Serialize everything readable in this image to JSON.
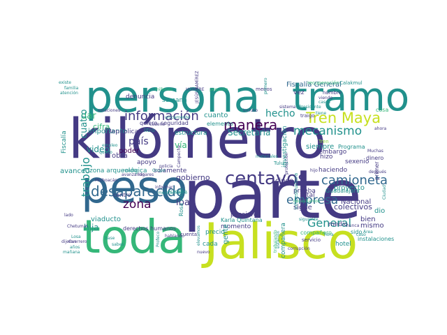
{
  "palette": {
    "yellow": "#c7e020",
    "lime": "#8fd744",
    "green": "#35b779",
    "teal": "#21918c",
    "blue": "#31688e",
    "indigo": "#443a83",
    "purple": "#440154"
  },
  "words": [
    {
      "text": "kilómetro",
      "color": "indigo"
    },
    {
      "text": "parte",
      "color": "indigo"
    },
    {
      "text": "persona",
      "color": "teal"
    },
    {
      "text": "peso",
      "color": "blue"
    },
    {
      "text": "toda",
      "color": "green"
    },
    {
      "text": "Jalisco",
      "color": "yellow"
    },
    {
      "text": "tramo",
      "color": "teal"
    },
    {
      "text": "centavos",
      "color": "indigo"
    },
    {
      "text": "Tren Maya",
      "color": "yellow"
    },
    {
      "text": "camioneta",
      "color": "blue"
    },
    {
      "text": "desaparecido",
      "color": "blue"
    },
    {
      "text": "información",
      "color": "indigo"
    },
    {
      "text": "manera",
      "color": "purple"
    },
    {
      "text": "mecanismo",
      "color": "teal"
    },
    {
      "text": "trabajo",
      "color": "teal"
    },
    {
      "text": "empresa",
      "color": "blue"
    },
    {
      "text": "zona",
      "color": "purple"
    },
    {
      "text": "General",
      "color": "teal"
    },
    {
      "text": "hecho",
      "color": "teal"
    },
    {
      "text": "cuatro",
      "color": "teal"
    },
    {
      "text": "país",
      "color": "indigo"
    },
    {
      "text": "colectivos",
      "color": "indigo"
    },
    {
      "text": "Secretaría",
      "color": "teal"
    },
    {
      "text": "gobierno",
      "color": "indigo"
    },
    {
      "text": "hija",
      "color": "teal"
    },
    {
      "text": "vía",
      "color": "green"
    },
    {
      "text": "video",
      "color": "teal"
    },
    {
      "text": "iba",
      "color": "indigo"
    },
    {
      "text": "gente",
      "color": "teal"
    },
    {
      "text": "cuanto",
      "color": "teal"
    },
    {
      "text": "dar",
      "color": "green"
    },
    {
      "text": "cifra",
      "color": "green"
    },
    {
      "text": "obra",
      "color": "indigo"
    },
    {
      "text": "poder",
      "color": "purple"
    },
    {
      "text": "importante",
      "color": "teal"
    },
    {
      "text": "República",
      "color": "indigo"
    },
    {
      "text": "Fiscalía General",
      "color": "blue"
    },
    {
      "text": "zona arqueológica",
      "color": "teal"
    },
    {
      "text": "solamente",
      "color": "indigo"
    },
    {
      "text": "viaducto",
      "color": "teal"
    },
    {
      "text": "avance",
      "color": "teal"
    },
    {
      "text": "derechos humanos",
      "color": "indigo"
    },
    {
      "text": "momento",
      "color": "indigo"
    },
    {
      "text": "precio",
      "color": "teal"
    },
    {
      "text": "pasajero",
      "color": "indigo"
    },
    {
      "text": "sigue",
      "color": "indigo"
    },
    {
      "text": "Nacional",
      "color": "indigo"
    },
    {
      "text": "proyecto",
      "color": "teal"
    },
    {
      "text": "bien",
      "color": "indigo"
    },
    {
      "text": "mismo",
      "color": "indigo"
    },
    {
      "text": "dio",
      "color": "teal"
    },
    {
      "text": "haciendo",
      "color": "indigo"
    },
    {
      "text": "embargo",
      "color": "indigo"
    },
    {
      "text": "siempre",
      "color": "teal"
    },
    {
      "text": "hizo",
      "color": "indigo"
    },
    {
      "text": "sexenio",
      "color": "indigo"
    },
    {
      "text": "dinero",
      "color": "indigo"
    },
    {
      "text": "cosa",
      "color": "green"
    },
    {
      "text": "compañera",
      "color": "teal"
    },
    {
      "text": "investigación",
      "color": "teal"
    },
    {
      "text": "estructura",
      "color": "teal"
    },
    {
      "text": "seguridad",
      "color": "indigo"
    },
    {
      "text": "quiero",
      "color": "indigo"
    },
    {
      "text": "litro",
      "color": "teal"
    },
    {
      "text": "elemento",
      "color": "teal"
    },
    {
      "text": "semana",
      "color": "teal"
    },
    {
      "text": "denuncia",
      "color": "indigo"
    },
    {
      "text": "apoyo",
      "color": "indigo"
    },
    {
      "text": "cada",
      "color": "teal"
    },
    {
      "text": "cinco",
      "color": "indigo"
    },
    {
      "text": "sido",
      "color": "teal"
    },
    {
      "text": "medio",
      "color": "indigo"
    },
    {
      "text": "hotel",
      "color": "teal"
    },
    {
      "text": "vez",
      "color": "indigo"
    },
    {
      "text": "total",
      "color": "indigo"
    },
    {
      "text": "centro",
      "color": "indigo"
    },
    {
      "text": "prueba",
      "color": "indigo"
    },
    {
      "text": "Guadalajara",
      "color": "teal"
    },
    {
      "text": "Rosa Icela",
      "color": "teal"
    },
    {
      "text": "Karla Quintana",
      "color": "teal"
    },
    {
      "text": "Fiscalía",
      "color": "teal"
    },
    {
      "text": "compañero",
      "color": "green"
    },
    {
      "text": "infraestructura",
      "color": "teal"
    },
    {
      "text": "primer",
      "color": "indigo"
    },
    {
      "text": "Programa",
      "color": "teal"
    },
    {
      "text": "Muchas",
      "color": "indigo"
    },
    {
      "text": "Tulum",
      "color": "teal"
    },
    {
      "text": "traigo",
      "color": "indigo"
    },
    {
      "text": "viendo",
      "color": "indigo"
    },
    {
      "text": "casos",
      "color": "teal"
    },
    {
      "text": "nombre",
      "color": "indigo"
    },
    {
      "text": "menos",
      "color": "indigo"
    },
    {
      "text": "primero",
      "color": "teal"
    },
    {
      "text": "recuperación",
      "color": "green"
    },
    {
      "text": "Calakmul",
      "color": "teal"
    },
    {
      "text": "millones",
      "color": "green"
    },
    {
      "text": "HOMBRE",
      "color": "indigo"
    },
    {
      "text": "JESÚS RAMÍREZ",
      "color": "indigo"
    },
    {
      "text": "estaciones",
      "color": "indigo"
    },
    {
      "text": "avanzando",
      "color": "indigo"
    },
    {
      "text": "resulta",
      "color": "teal"
    },
    {
      "text": "policía",
      "color": "indigo"
    },
    {
      "text": "Grupo",
      "color": "teal"
    },
    {
      "text": "lugares",
      "color": "indigo"
    },
    {
      "text": "Campeche",
      "color": "indigo"
    },
    {
      "text": "Michoacán",
      "color": "indigo"
    },
    {
      "text": "Chetumal",
      "color": "indigo"
    },
    {
      "text": "Guerrero",
      "color": "indigo"
    },
    {
      "text": "hablando",
      "color": "indigo"
    },
    {
      "text": "cuenta",
      "color": "indigo"
    },
    {
      "text": "servicio",
      "color": "indigo"
    },
    {
      "text": "incluso",
      "color": "indigo"
    },
    {
      "text": "sistema",
      "color": "indigo"
    },
    {
      "text": "protección",
      "color": "indigo"
    },
    {
      "text": "Tren",
      "color": "lime"
    },
    {
      "text": "instalaciones",
      "color": "teal"
    },
    {
      "text": "lado",
      "color": "indigo"
    },
    {
      "text": "familia",
      "color": "teal"
    },
    {
      "text": "existe",
      "color": "teal"
    },
    {
      "text": "atención",
      "color": "teal"
    },
    {
      "text": "empleo",
      "color": "teal"
    },
    {
      "text": "cadena",
      "color": "indigo"
    },
    {
      "text": "quedo",
      "color": "teal"
    },
    {
      "text": "Acapulco",
      "color": "teal"
    },
    {
      "text": "hora",
      "color": "teal"
    },
    {
      "text": "caso",
      "color": "teal"
    },
    {
      "text": "Área",
      "color": "teal"
    },
    {
      "text": "base",
      "color": "teal"
    },
    {
      "text": "Losa",
      "color": "teal"
    },
    {
      "text": "dijeron",
      "color": "indigo"
    },
    {
      "text": "mañana",
      "color": "teal"
    },
    {
      "text": "años",
      "color": "teal"
    },
    {
      "text": "nuevo",
      "color": "indigo"
    },
    {
      "text": "nunca",
      "color": "indigo"
    },
    {
      "text": "corrupción",
      "color": "indigo"
    },
    {
      "text": "materiales",
      "color": "teal"
    },
    {
      "text": "siguiente",
      "color": "teal"
    },
    {
      "text": "hijo",
      "color": "indigo"
    },
    {
      "text": "pequeño",
      "color": "green"
    },
    {
      "text": "Presidente",
      "color": "teal"
    },
    {
      "text": "Profeco",
      "color": "teal"
    },
    {
      "text": "sabes",
      "color": "teal"
    },
    {
      "text": "después",
      "color": "indigo"
    },
    {
      "text": "ahora",
      "color": "indigo"
    },
    {
      "text": "Ciudad",
      "color": "teal"
    },
    {
      "text": "informar",
      "color": "indigo"
    },
    {
      "text": "elevamos",
      "color": "teal"
    },
    {
      "text": "mejoramiento",
      "color": "teal"
    },
    {
      "text": "estación",
      "color": "teal"
    },
    {
      "text": "trabajando",
      "color": "green"
    },
    {
      "text": "unicamente",
      "color": "teal"
    },
    {
      "text": "necesitamos",
      "color": "green"
    },
    {
      "text": "tiene",
      "color": "teal"
    },
    {
      "text": "Maya",
      "color": "teal"
    },
    {
      "text": "forma",
      "color": "indigo"
    },
    {
      "text": "leer",
      "color": "teal"
    },
    {
      "text": "falla",
      "color": "teal"
    },
    {
      "text": "único",
      "color": "teal"
    },
    {
      "text": "tiempo",
      "color": "teal"
    },
    {
      "text": "mundo",
      "color": "indigo"
    },
    {
      "text": "cerca",
      "color": "green"
    },
    {
      "text": "ruta",
      "color": "teal"
    },
    {
      "text": "salida",
      "color": "teal"
    },
    {
      "text": "general",
      "color": "teal"
    },
    {
      "text": "unas",
      "color": "teal"
    },
    {
      "text": "obras",
      "color": "indigo"
    },
    {
      "text": "punto",
      "color": "teal"
    },
    {
      "text": "saber",
      "color": "green"
    },
    {
      "text": "tema",
      "color": "teal"
    }
  ]
}
